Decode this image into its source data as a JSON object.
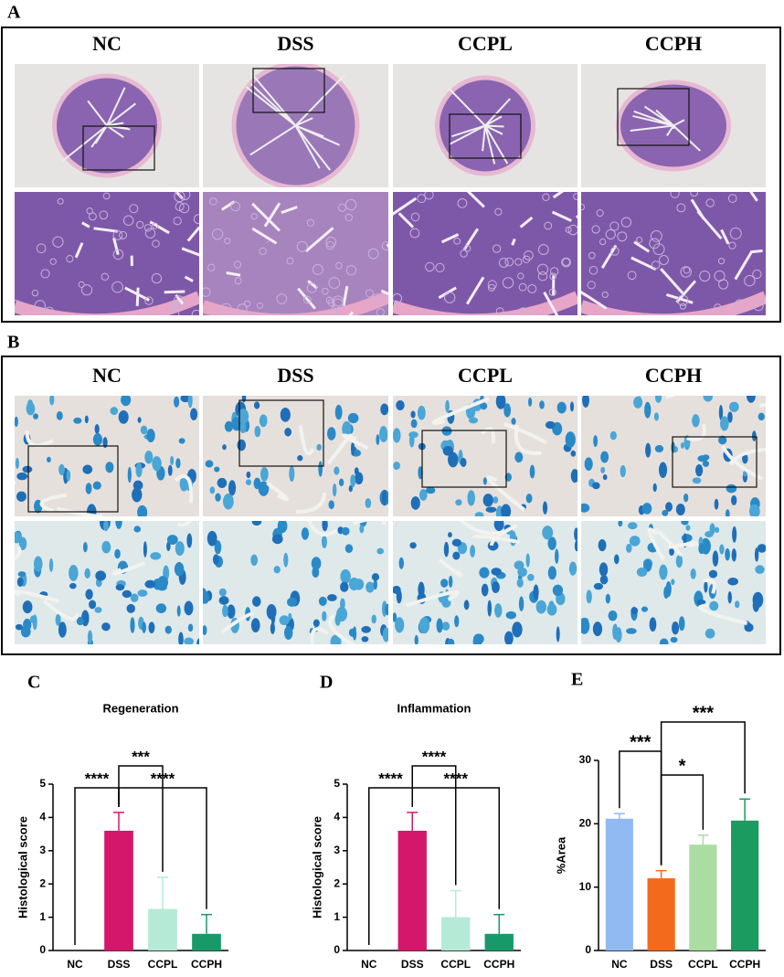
{
  "histology": [
    {
      "label": "A",
      "groups": [
        "NC",
        "DSS",
        "CCPL",
        "CCPH"
      ]
    },
    {
      "label": "B",
      "groups": [
        "NC",
        "DSS",
        "CCPL",
        "CCPH"
      ]
    }
  ],
  "chart_data": [
    {
      "type": "bar",
      "label": "C",
      "title": "Regeneration",
      "y_label": "Histological score",
      "categories": [
        "NC",
        "DSS",
        "CCPL",
        "CCPH"
      ],
      "values": [
        0,
        3.6,
        1.25,
        0.5
      ],
      "errors": [
        0,
        0.55,
        0.95,
        0.58
      ],
      "colors": [
        "#9ec3f0",
        "#d4176b",
        "#b5ead6",
        "#18996a"
      ],
      "ylim": [
        0,
        5
      ],
      "yticks": [
        0,
        1,
        2,
        3,
        4,
        5
      ],
      "annotations": [
        {
          "text": "****",
          "between": [
            "NC",
            "DSS"
          ]
        },
        {
          "text": "***",
          "between": [
            "DSS",
            "CCPL"
          ]
        },
        {
          "text": "****",
          "between": [
            "DSS",
            "CCPH"
          ]
        }
      ]
    },
    {
      "type": "bar",
      "label": "D",
      "title": "Inflammation",
      "y_label": "Histological score",
      "categories": [
        "NC",
        "DSS",
        "CCPL",
        "CCPH"
      ],
      "values": [
        0,
        3.6,
        1.0,
        0.5
      ],
      "errors": [
        0,
        0.55,
        0.8,
        0.58
      ],
      "colors": [
        "#9ec3f0",
        "#d4176b",
        "#b5ead6",
        "#18996a"
      ],
      "ylim": [
        0,
        5
      ],
      "yticks": [
        0,
        1,
        2,
        3,
        4,
        5
      ],
      "annotations": [
        {
          "text": "****",
          "between": [
            "NC",
            "DSS"
          ]
        },
        {
          "text": "****",
          "between": [
            "DSS",
            "CCPL"
          ]
        },
        {
          "text": "****",
          "between": [
            "DSS",
            "CCPH"
          ]
        }
      ]
    },
    {
      "type": "bar",
      "label": "E",
      "y_label": "%Area",
      "categories": [
        "NC",
        "DSS",
        "CCPL",
        "CCPH"
      ],
      "values": [
        20.8,
        11.4,
        16.7,
        20.5
      ],
      "errors": [
        0.8,
        1.2,
        1.5,
        3.4
      ],
      "colors": [
        "#91baf2",
        "#f46a1c",
        "#a9dda2",
        "#1b9b5f"
      ],
      "ylim": [
        0,
        30
      ],
      "yticks": [
        0,
        10,
        20,
        30
      ],
      "annotations": [
        {
          "text": "***",
          "between": [
            "NC",
            "DSS"
          ]
        },
        {
          "text": "*",
          "between": [
            "DSS",
            "CCPL"
          ]
        },
        {
          "text": "***",
          "between": [
            "DSS",
            "CCPH"
          ]
        }
      ]
    }
  ]
}
